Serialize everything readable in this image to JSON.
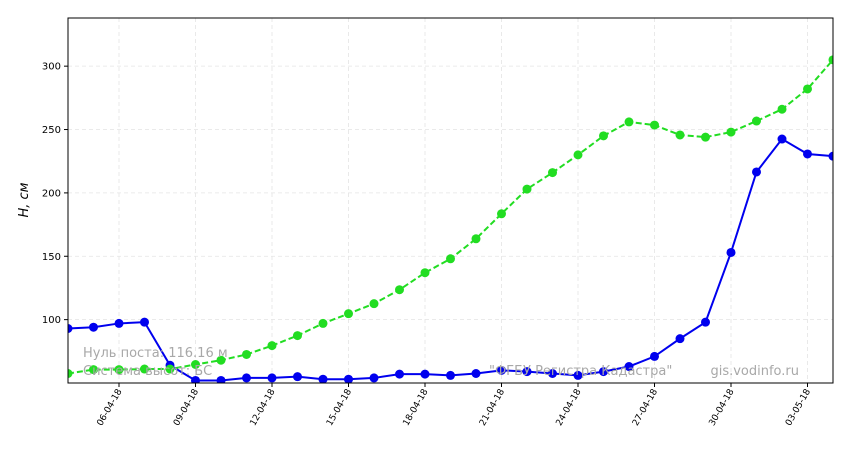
{
  "chart_data": {
    "type": "line",
    "y_label": "H, см",
    "categories": [
      null,
      null,
      "06-04-18",
      null,
      null,
      "09-04-18",
      null,
      null,
      "12-04-18",
      null,
      null,
      "15-04-18",
      null,
      null,
      "18-04-18",
      null,
      null,
      "21-04-18",
      null,
      null,
      "24-04-18",
      null,
      null,
      "27-04-18",
      null,
      null,
      "30-04-18",
      null,
      null,
      "03-05-18",
      null
    ],
    "series": [
      {
        "color": "#0000ee",
        "style": "solid",
        "values": [
          93,
          94,
          97,
          98,
          64,
          52,
          52,
          54,
          54,
          55,
          53,
          53,
          54,
          57,
          57,
          56,
          57.5,
          60,
          59,
          57.5,
          56,
          59,
          63,
          71,
          85,
          98,
          153,
          216.5,
          242.5,
          230.7,
          229
        ]
      },
      {
        "color": "#22dd22",
        "style": "dashed",
        "values": [
          57.5,
          60.6,
          60.6,
          61,
          61,
          64.6,
          68,
          72.5,
          79.5,
          87.4,
          97,
          104.7,
          112.6,
          123.6,
          137,
          148,
          163.8,
          183.5,
          203,
          216,
          230,
          245,
          256,
          253.5,
          245.7,
          244,
          248,
          256.7,
          266,
          282,
          305
        ]
      }
    ],
    "ylim": [
      50,
      338
    ],
    "yticks": [
      100,
      150,
      200,
      250,
      300
    ],
    "grid": true,
    "annotations": [
      "Нуль поста: 116.16 м",
      "Система высот: БС",
      "\"ФГБУ Регистра  Кадастра\"",
      "gis.vodinfo.ru"
    ]
  }
}
